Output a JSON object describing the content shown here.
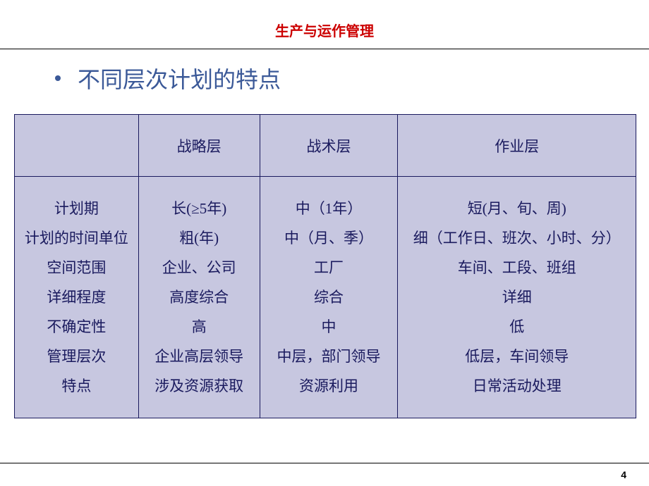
{
  "header": {
    "title": "生产与运作管理"
  },
  "bullet": {
    "text": "不同层次计划的特点"
  },
  "table": {
    "columns": [
      "",
      "战略层",
      "战术层",
      "作业层"
    ],
    "rowLabels": [
      "计划期",
      "计划的时间单位",
      "空间范围",
      "详细程度",
      "不确定性",
      "管理层次",
      "特点"
    ],
    "col1": [
      "长(≥5年)",
      "粗(年)",
      "企业、公司",
      "高度综合",
      "高",
      "企业高层领导",
      "涉及资源获取"
    ],
    "col2": [
      "中（1年）",
      "中（月、季）",
      "工厂",
      "综合",
      "中",
      "中层，部门领导",
      "资源利用"
    ],
    "col3": [
      "短(月、旬、周)",
      "细（工作日、班次、小时、分）",
      "车间、工段、班组",
      "详细",
      "低",
      "低层，车间领导",
      "日常活动处理"
    ]
  },
  "footer": {
    "pageNumber": "4"
  }
}
